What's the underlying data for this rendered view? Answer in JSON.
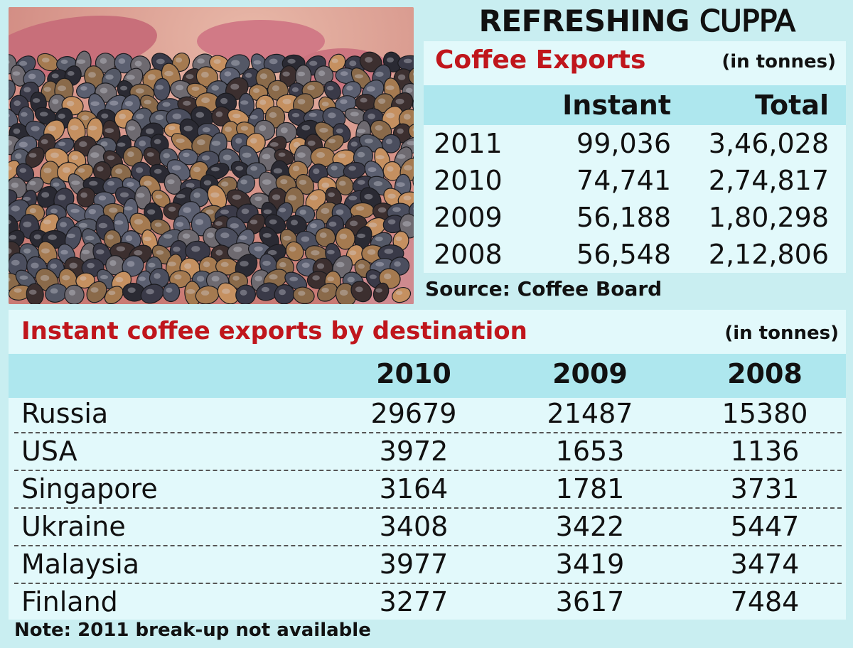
{
  "title": {
    "part1": "REFRESHING",
    "part2": "CUPPA"
  },
  "chart_data": [
    {
      "type": "table",
      "title": "Coffee Exports",
      "unit": "(in tonnes)",
      "columns": [
        "",
        "Instant",
        "Total"
      ],
      "rows": [
        {
          "year": "2011",
          "instant": "99,036",
          "total": "3,46,028"
        },
        {
          "year": "2010",
          "instant": "74,741",
          "total": "2,74,817"
        },
        {
          "year": "2009",
          "instant": "56,188",
          "total": "1,80,298"
        },
        {
          "year": "2008",
          "instant": "56,548",
          "total": "2,12,806"
        }
      ],
      "source": "Source: Coffee Board"
    },
    {
      "type": "table",
      "title": "Instant coffee exports by destination",
      "unit": "(in tonnes)",
      "columns": [
        "",
        "2010",
        "2009",
        "2008"
      ],
      "rows": [
        {
          "country": "Russia",
          "v2010": "29679",
          "v2009": "21487",
          "v2008": "15380"
        },
        {
          "country": "USA",
          "v2010": "3972",
          "v2009": "1653",
          "v2008": "1136"
        },
        {
          "country": "Singapore",
          "v2010": "3164",
          "v2009": "1781",
          "v2008": "3731"
        },
        {
          "country": "Ukraine",
          "v2010": "3408",
          "v2009": "3422",
          "v2008": "5447"
        },
        {
          "country": "Malaysia",
          "v2010": "3977",
          "v2009": "3419",
          "v2008": "3474"
        },
        {
          "country": "Finland",
          "v2010": "3277",
          "v2009": "3617",
          "v2008": "7484"
        }
      ],
      "note": "Note: 2011 break-up not available"
    }
  ],
  "colors": {
    "accent": "#c0161c",
    "background": "#c9eef1",
    "panel": "#e2f9fb",
    "header_band": "#aee7ee"
  }
}
